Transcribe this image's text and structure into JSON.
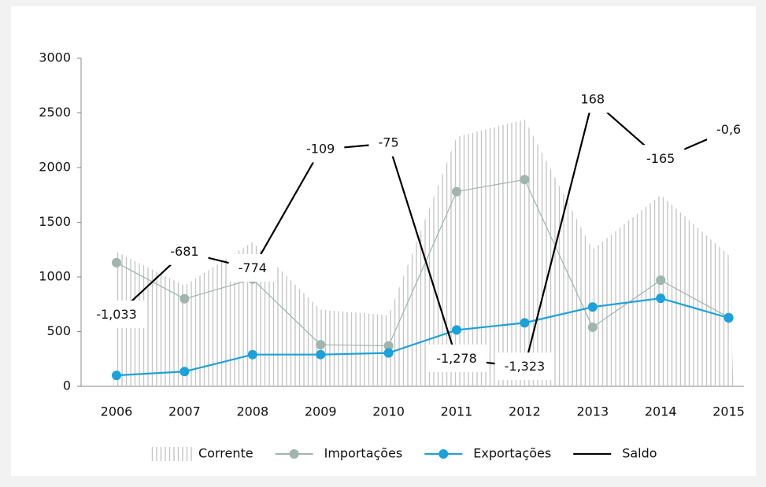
{
  "chart_data": {
    "type": "line",
    "categories": [
      "2006",
      "2007",
      "2008",
      "2009",
      "2010",
      "2011",
      "2012",
      "2013",
      "2014",
      "2015"
    ],
    "ylim": [
      0,
      3000
    ],
    "yticks": [
      0,
      500,
      1000,
      1500,
      2000,
      2500,
      3000
    ],
    "y2lim": [
      -1430,
      400
    ],
    "legend": "bottom",
    "series": [
      {
        "name": "Corrente",
        "color": "#c6c6c6",
        "mark": "hatched-area",
        "values": [
          1230,
          920,
          1320,
          700,
          650,
          2280,
          2440,
          1250,
          1750,
          1200
        ]
      },
      {
        "name": "Importações",
        "color": "#9fb5ad",
        "mark": "line",
        "markers": true,
        "values": [
          1130,
          800,
          980,
          380,
          370,
          1780,
          1890,
          540,
          970,
          630
        ]
      },
      {
        "name": "Exportações",
        "color": "#1ba1db",
        "mark": "line",
        "markers": true,
        "values": [
          100,
          135,
          290,
          290,
          305,
          515,
          580,
          725,
          805,
          625
        ]
      },
      {
        "name": "Saldo",
        "color": "#000000",
        "mark": "line",
        "markers": false,
        "axis": "y2",
        "values": [
          -1033,
          -681,
          -774,
          -109,
          -75,
          -1278,
          -1323,
          168,
          -165,
          -0.6
        ],
        "value_labels": [
          "-1,033",
          "-681",
          "-774",
          "-109",
          "-75",
          "-1,278",
          "-1,323",
          "168",
          "-165",
          "-0,6"
        ]
      }
    ]
  }
}
